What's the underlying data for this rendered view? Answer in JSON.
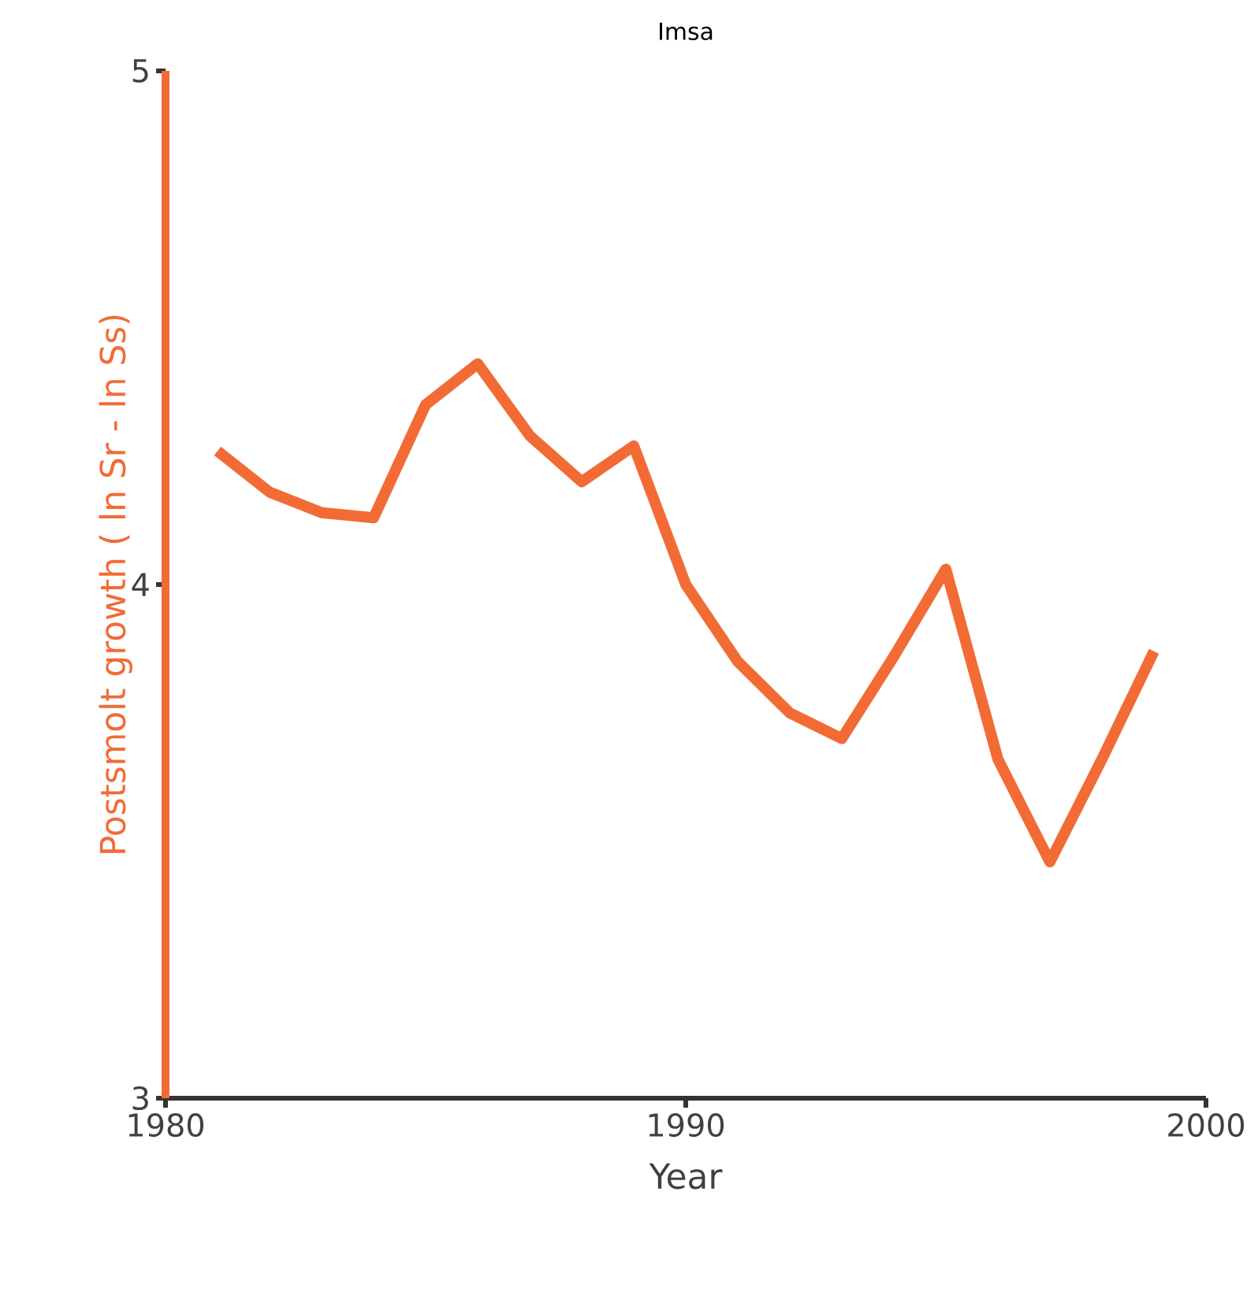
{
  "chart_data": {
    "type": "line",
    "title": "Imsa",
    "xlabel": "Year",
    "ylabel": "Postsmolt growth ( ln Sr - ln Ss)",
    "x": [
      1981,
      1982,
      1983,
      1984,
      1985,
      1986,
      1987,
      1988,
      1989,
      1990,
      1991,
      1992,
      1993,
      1994,
      1995,
      1996,
      1997,
      1998,
      1999
    ],
    "values": [
      4.26,
      4.18,
      4.14,
      4.13,
      4.35,
      4.43,
      4.29,
      4.2,
      4.27,
      4.0,
      3.85,
      3.75,
      3.7,
      3.86,
      4.03,
      3.66,
      3.46,
      3.66,
      3.87
    ],
    "color": "#f26b35",
    "xlim": [
      1980,
      2000
    ],
    "ylim": [
      3,
      5
    ],
    "xticks": [
      1980,
      1990,
      2000
    ],
    "yticks": [
      3,
      4,
      5
    ]
  }
}
